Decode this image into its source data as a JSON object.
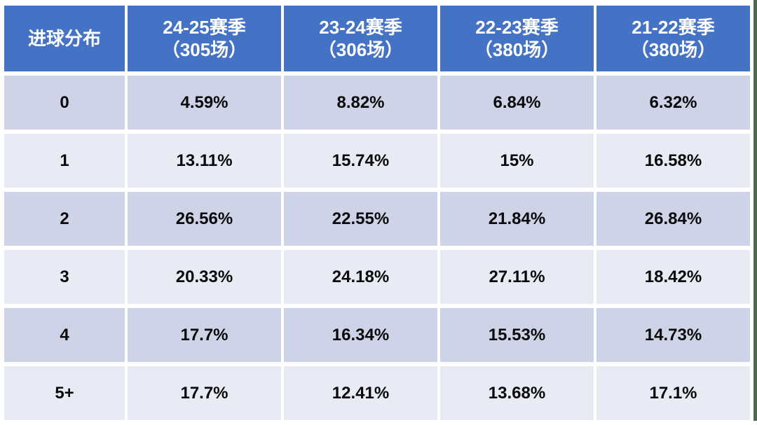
{
  "table": {
    "corner_label": "进球分布",
    "columns": [
      {
        "season": "24-25赛季",
        "games": "（305场）"
      },
      {
        "season": "23-24赛季",
        "games": "（306场）"
      },
      {
        "season": "22-23赛季",
        "games": "（380场）"
      },
      {
        "season": "21-22赛季",
        "games": "（380场）"
      }
    ],
    "rows": [
      {
        "goals": "0",
        "values": [
          "4.59%",
          "8.82%",
          "6.84%",
          "6.32%"
        ]
      },
      {
        "goals": "1",
        "values": [
          "13.11%",
          "15.74%",
          "15%",
          "16.58%"
        ]
      },
      {
        "goals": "2",
        "values": [
          "26.56%",
          "22.55%",
          "21.84%",
          "26.84%"
        ]
      },
      {
        "goals": "3",
        "values": [
          "20.33%",
          "24.18%",
          "27.11%",
          "18.42%"
        ]
      },
      {
        "goals": "4",
        "values": [
          "17.7%",
          "16.34%",
          "15.53%",
          "14.73%"
        ]
      },
      {
        "goals": "5+",
        "values": [
          "17.7%",
          "12.41%",
          "13.68%",
          "17.1%"
        ]
      }
    ]
  },
  "colors": {
    "header_bg": "#4472C4",
    "header_text": "#FFFFFF",
    "row_dark": "#CED3E8",
    "row_light": "#E9EBF4",
    "body_text": "#0A0A0A",
    "gridline": "#FFFFFF",
    "edge_strip_green": "#4A6B4F"
  },
  "chart_data": {
    "type": "table",
    "title": "进球分布",
    "columns": [
      "进球分布",
      "24-25赛季（305场）",
      "23-24赛季（306场）",
      "22-23赛季（380场）",
      "21-22赛季（380场）"
    ],
    "rows": [
      [
        "0",
        "4.59%",
        "8.82%",
        "6.84%",
        "6.32%"
      ],
      [
        "1",
        "13.11%",
        "15.74%",
        "15%",
        "16.58%"
      ],
      [
        "2",
        "26.56%",
        "22.55%",
        "21.84%",
        "26.84%"
      ],
      [
        "3",
        "20.33%",
        "24.18%",
        "27.11%",
        "18.42%"
      ],
      [
        "4",
        "17.7%",
        "16.34%",
        "15.53%",
        "14.73%"
      ],
      [
        "5+",
        "17.7%",
        "12.41%",
        "13.68%",
        "17.1%"
      ]
    ],
    "layout": {
      "header_row": true,
      "banding": "alternating",
      "gridlines": "white-gaps"
    }
  }
}
